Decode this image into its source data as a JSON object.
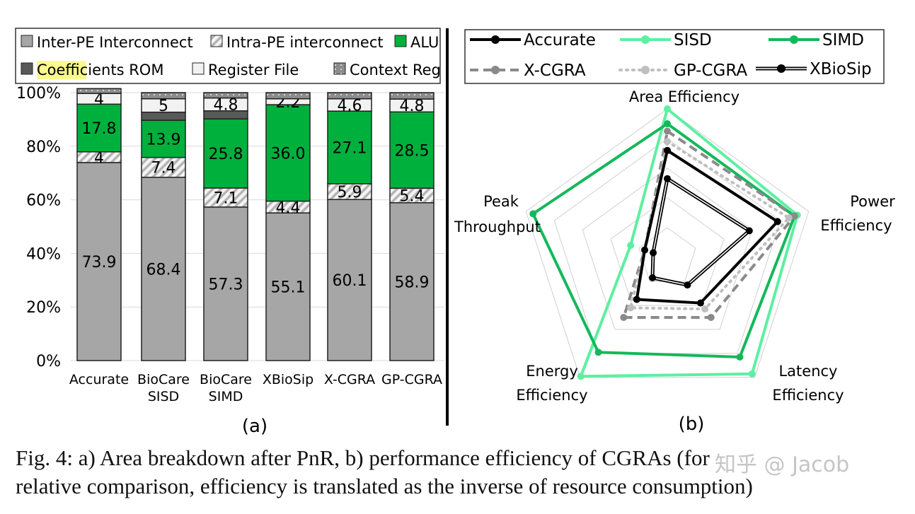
{
  "chart_data": [
    {
      "type": "bar",
      "stacked": true,
      "panel_label": "(a)",
      "categories": [
        "Accurate",
        "BioCare\nSISD",
        "BioCare\nSIMD",
        "XBioSip",
        "X-CGRA",
        "GP-CGRA"
      ],
      "ylim": [
        0,
        100
      ],
      "yticks": [
        "0%",
        "20%",
        "40%",
        "60%",
        "80%",
        "100%"
      ],
      "grid": true,
      "legend_position": "top",
      "series": [
        {
          "name": "Inter-PE Interconnect",
          "color": "#a6a6a6",
          "pattern": "solid",
          "values": [
            73.9,
            68.4,
            57.3,
            55.1,
            60.1,
            58.9
          ],
          "labels": [
            "73.9",
            "68.4",
            "57.3",
            "55.1",
            "60.1",
            "58.9"
          ]
        },
        {
          "name": "Intra-PE interconnect",
          "color": "#d9d9d9",
          "pattern": "hatched",
          "values": [
            4,
            7.4,
            7.1,
            4.4,
            5.9,
            5.4
          ],
          "labels": [
            "4",
            "7.4",
            "7.1",
            "4.4",
            "5.9",
            "5.4"
          ]
        },
        {
          "name": "ALU",
          "color": "#00b03c",
          "pattern": "solid",
          "values": [
            17.8,
            13.9,
            25.8,
            36.0,
            27.1,
            28.5
          ],
          "labels": [
            "17.8",
            "13.9",
            "25.8",
            "36.0",
            "27.1",
            "28.5"
          ]
        },
        {
          "name": "Coefficients ROM",
          "color": "#595959",
          "pattern": "solid",
          "values": [
            0,
            3,
            3,
            0,
            0,
            0
          ],
          "labels": [
            "",
            "",
            "",
            "",
            "",
            ""
          ]
        },
        {
          "name": "Register File",
          "color": "#f2f2f2",
          "pattern": "solid",
          "values": [
            4,
            5,
            4.8,
            2.2,
            4.6,
            4.8
          ],
          "labels": [
            "4",
            "5",
            "4.8",
            "2.2",
            "4.6",
            "4.8"
          ]
        },
        {
          "name": "Context Reg",
          "color": "#8c8c8c",
          "pattern": "dotted",
          "values": [
            1.8,
            2.3,
            2,
            2.3,
            2.3,
            2.4
          ],
          "labels": [
            "",
            "",
            "",
            "",
            "",
            ""
          ]
        }
      ]
    },
    {
      "type": "radar",
      "panel_label": "(b)",
      "axes": [
        "Area Efficiency",
        "Power Efficiency",
        "Latency Efficiency",
        "Energy Efficiency",
        "Peak Throughput"
      ],
      "range": [
        0,
        1
      ],
      "rings": 5,
      "legend_position": "top",
      "series": [
        {
          "name": "Accurate",
          "color": "#000000",
          "style": "solid",
          "values": [
            0.72,
            0.78,
            0.38,
            0.35,
            0.16
          ]
        },
        {
          "name": "SISD",
          "color": "#5cf0a0",
          "style": "solid",
          "values": [
            1.0,
            0.92,
            0.97,
            0.99,
            0.26
          ]
        },
        {
          "name": "SIMD",
          "color": "#14b85a",
          "style": "solid",
          "values": [
            0.9,
            0.9,
            0.83,
            0.79,
            0.95
          ]
        },
        {
          "name": "X-CGRA",
          "color": "#8a8a8a",
          "style": "dashed",
          "values": [
            0.85,
            0.9,
            0.5,
            0.5,
            0.16
          ]
        },
        {
          "name": "GP-CGRA",
          "color": "#bfbfbf",
          "style": "dotted",
          "values": [
            0.78,
            0.86,
            0.43,
            0.42,
            0.16
          ]
        },
        {
          "name": "XBioSip",
          "color": "#000000",
          "style": "double",
          "values": [
            0.53,
            0.58,
            0.23,
            0.17,
            0.1
          ]
        }
      ]
    }
  ],
  "caption": {
    "line1": "Fig.   4:   a) Area breakdown after PnR, b) performance efficiency of CGRAs (for",
    "line2": "relative comparison, efficiency is translated as the inverse of resource consumption)"
  },
  "watermark": "知乎 @ Jacob"
}
